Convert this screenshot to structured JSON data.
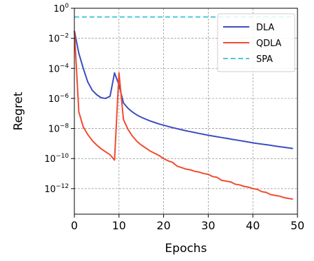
{
  "chart_data": {
    "type": "line",
    "xlabel": "Epochs",
    "ylabel": "Regret",
    "xlim": [
      0,
      50
    ],
    "ylim_log10": [
      -13.7,
      0
    ],
    "yscale": "log",
    "grid": true,
    "legend_position": "top-right",
    "x_ticks": [
      0,
      10,
      20,
      30,
      40,
      50
    ],
    "y_ticks": [
      {
        "base": "10",
        "exp": "0",
        "value_log10": 0
      },
      {
        "base": "10",
        "exp": "−2",
        "value_log10": -2
      },
      {
        "base": "10",
        "exp": "−4",
        "value_log10": -4
      },
      {
        "base": "10",
        "exp": "−6",
        "value_log10": -6
      },
      {
        "base": "10",
        "exp": "−8",
        "value_log10": -8
      },
      {
        "base": "10",
        "exp": "−10",
        "value_log10": -10
      },
      {
        "base": "10",
        "exp": "−12",
        "value_log10": -12
      }
    ],
    "series": [
      {
        "name": "DLA",
        "color": "#3b4cc0",
        "dash": "solid",
        "x": [
          0,
          1,
          2,
          3,
          4,
          5,
          6,
          7,
          8,
          9,
          10,
          11,
          12,
          13,
          14,
          15,
          16,
          17,
          18,
          19,
          20,
          21,
          22,
          23,
          24,
          25,
          26,
          27,
          28,
          29,
          30,
          31,
          32,
          33,
          34,
          35,
          36,
          37,
          38,
          39,
          40,
          41,
          42,
          43,
          44,
          45,
          46,
          47,
          48,
          49
        ],
        "y_log10": [
          -1.5,
          -3.0,
          -4.0,
          -4.9,
          -5.45,
          -5.75,
          -5.95,
          -6.0,
          -5.85,
          -4.3,
          -5.1,
          -6.3,
          -6.65,
          -6.9,
          -7.1,
          -7.25,
          -7.38,
          -7.5,
          -7.6,
          -7.7,
          -7.78,
          -7.86,
          -7.94,
          -8.01,
          -8.08,
          -8.15,
          -8.21,
          -8.27,
          -8.33,
          -8.39,
          -8.45,
          -8.5,
          -8.55,
          -8.6,
          -8.65,
          -8.7,
          -8.75,
          -8.8,
          -8.85,
          -8.9,
          -8.95,
          -9.0,
          -9.04,
          -9.08,
          -9.12,
          -9.17,
          -9.21,
          -9.25,
          -9.29,
          -9.33
        ]
      },
      {
        "name": "QDLA",
        "color": "#f14a2e",
        "dash": "solid",
        "x": [
          0,
          1,
          2,
          3,
          4,
          5,
          6,
          7,
          8,
          9,
          10,
          11,
          12,
          13,
          14,
          15,
          16,
          17,
          18,
          19,
          20,
          21,
          22,
          23,
          24,
          25,
          26,
          27,
          28,
          29,
          30,
          31,
          32,
          33,
          34,
          35,
          36,
          37,
          38,
          39,
          40,
          41,
          42,
          43,
          44,
          45,
          46,
          47,
          48,
          49
        ],
        "y_log10": [
          -1.5,
          -6.9,
          -7.9,
          -8.4,
          -8.8,
          -9.1,
          -9.35,
          -9.55,
          -9.75,
          -10.1,
          -4.3,
          -7.4,
          -8.05,
          -8.5,
          -8.85,
          -9.1,
          -9.3,
          -9.5,
          -9.65,
          -9.8,
          -10.0,
          -10.15,
          -10.25,
          -10.5,
          -10.6,
          -10.7,
          -10.75,
          -10.85,
          -10.9,
          -11.0,
          -11.05,
          -11.2,
          -11.25,
          -11.45,
          -11.5,
          -11.55,
          -11.7,
          -11.75,
          -11.85,
          -11.9,
          -12.0,
          -12.05,
          -12.2,
          -12.25,
          -12.4,
          -12.45,
          -12.5,
          -12.6,
          -12.65,
          -12.7
        ]
      },
      {
        "name": "SPA",
        "color": "#4ec9d4",
        "dash": "dashed",
        "x": [
          0,
          49
        ],
        "y_log10": [
          -0.58,
          -0.58
        ]
      }
    ]
  }
}
